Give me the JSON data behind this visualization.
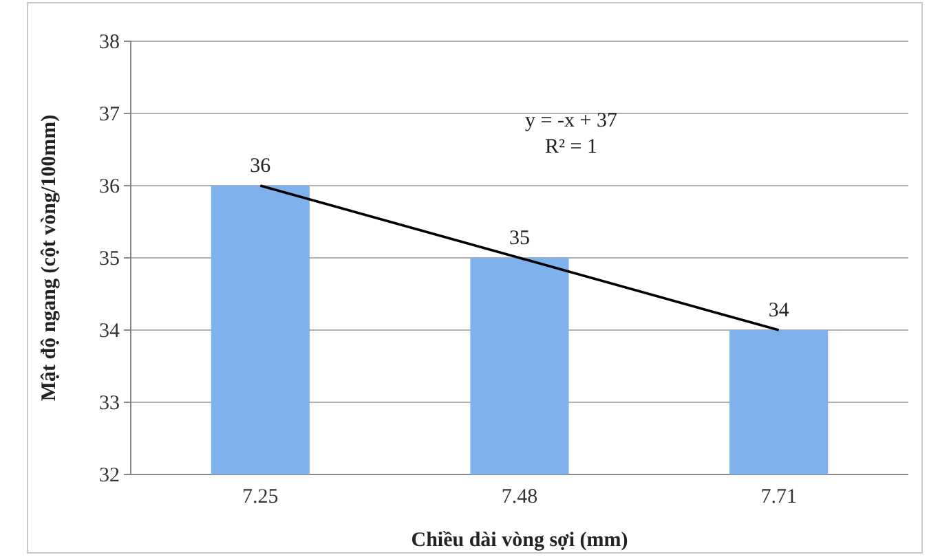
{
  "chart_data": {
    "type": "bar",
    "xlabel": "Chiều dài vòng sợi (mm)",
    "ylabel": "Mật độ ngang (cột vòng/100mm)",
    "categories": [
      "7.25",
      "7.48",
      "7.71"
    ],
    "series": [
      {
        "color": "#7fb2ec",
        "values": [
          36,
          35,
          34
        ],
        "value_labels": [
          "36",
          "35",
          "34"
        ]
      },
      {
        "type": "line",
        "color": "#000000",
        "values": [
          36,
          35,
          34
        ]
      }
    ],
    "ylim": [
      32,
      38
    ],
    "yticks": [
      32,
      33,
      34,
      35,
      36,
      37,
      38
    ],
    "grid": "y",
    "marker": "none",
    "annotations": [
      "y = -x + 37",
      "R² = 1"
    ]
  }
}
